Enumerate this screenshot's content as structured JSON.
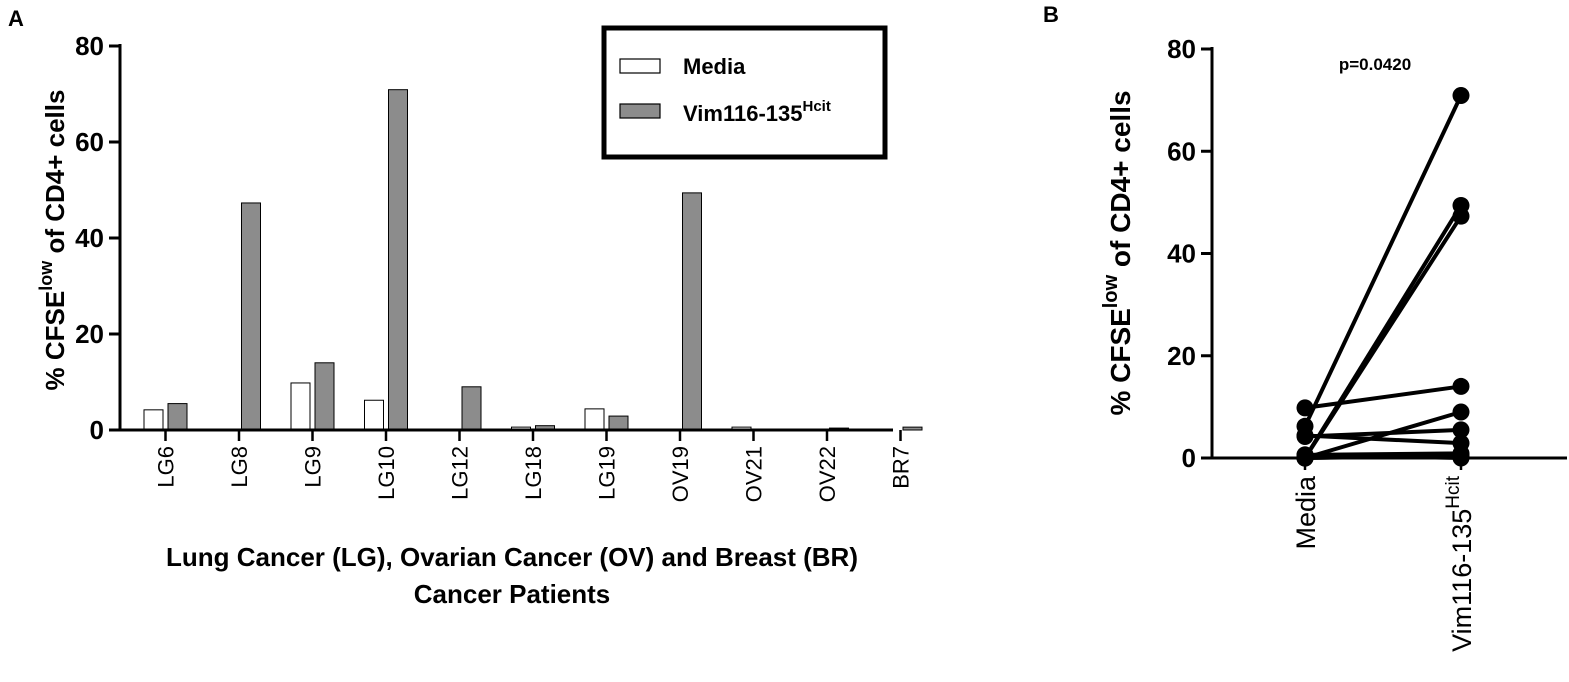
{
  "chart_data": [
    {
      "panel_label": "A",
      "type": "bar",
      "title": "",
      "ylabel": {
        "prefix": "% CFSE",
        "sup": "low",
        "suffix": " of CD4+ cells"
      },
      "xlabel_lines": [
        "Lung Cancer (LG), Ovarian Cancer (OV) and Breast (BR)",
        "Cancer Patients"
      ],
      "ylim": [
        0,
        80
      ],
      "yticks": [
        "0",
        "20",
        "40",
        "60",
        "80"
      ],
      "categories": [
        "LG6",
        "LG8",
        "LG9",
        "LG10",
        "LG12",
        "LG18",
        "LG19",
        "OV19",
        "OV21",
        "OV22",
        "BR7"
      ],
      "series": [
        {
          "name": "Media",
          "fill": "#ffffff",
          "values": [
            4.2,
            0,
            9.8,
            6.2,
            0,
            0.6,
            4.4,
            0,
            0.6,
            0,
            0
          ]
        },
        {
          "name": "Vim116-135",
          "name_sup": "Hcit",
          "fill": "#8c8c8c",
          "values": [
            5.5,
            47.3,
            14.0,
            70.9,
            9.0,
            0.9,
            2.9,
            49.4,
            0,
            0.4,
            0.6
          ]
        }
      ],
      "legend": {
        "position": "top-right",
        "entries": [
          {
            "label": "Media",
            "sup": ""
          },
          {
            "label": "Vim116-135",
            "sup": "Hcit"
          }
        ]
      }
    },
    {
      "panel_label": "B",
      "type": "line",
      "ylabel": {
        "prefix": "% CFSE",
        "sup": "low",
        "suffix": " of CD4+ cells"
      },
      "ylim": [
        0,
        80
      ],
      "yticks": [
        "0",
        "20",
        "40",
        "60",
        "80"
      ],
      "categories": [
        {
          "label": "Media",
          "sup": ""
        },
        {
          "label": "Vim116-135",
          "sup": "Hcit"
        }
      ],
      "annotation": "p=0.0420",
      "pairs": [
        [
          4.2,
          5.5
        ],
        [
          0,
          47.3
        ],
        [
          9.8,
          14.0
        ],
        [
          6.2,
          70.9
        ],
        [
          0,
          9.0
        ],
        [
          0.6,
          0.9
        ],
        [
          4.4,
          2.9
        ],
        [
          0,
          49.4
        ],
        [
          0.6,
          0
        ],
        [
          0,
          0.4
        ],
        [
          0,
          0.6
        ]
      ]
    }
  ]
}
